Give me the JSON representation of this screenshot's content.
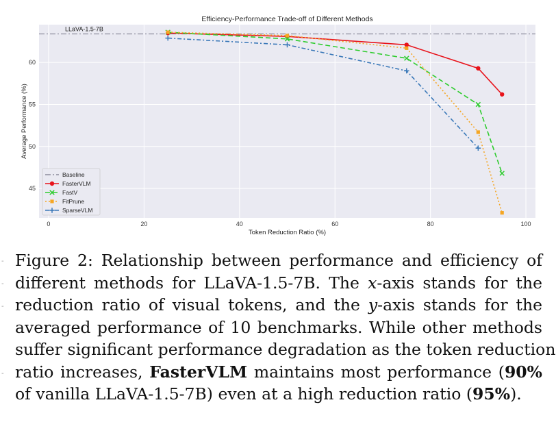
{
  "chart_data": {
    "type": "line",
    "title": "Efficiency-Performance Trade-off of Different Methods",
    "xlabel": "Token Reduction Ratio (%)",
    "ylabel": "Average Performance (%)",
    "xlim": [
      -2,
      102
    ],
    "ylim": [
      41.5,
      64.5
    ],
    "xticks": [
      0,
      20,
      40,
      60,
      80,
      100
    ],
    "yticks": [
      45,
      50,
      55,
      60
    ],
    "grid": true,
    "legend_position": "bottom-left",
    "baseline": {
      "name": "Baseline",
      "label": "LLaVA-1.5-7B",
      "value": 63.4,
      "color": "#8c8c9c"
    },
    "series": [
      {
        "name": "FasterVLM",
        "color": "#e8131b",
        "dash": "",
        "marker": "circle",
        "x": [
          25,
          50,
          75,
          90,
          95
        ],
        "values": [
          63.5,
          63.1,
          62.1,
          59.3,
          56.2
        ]
      },
      {
        "name": "FastV",
        "color": "#2ecc2e",
        "dash": "7,4",
        "marker": "x",
        "x": [
          25,
          50,
          75,
          90,
          95
        ],
        "values": [
          63.6,
          62.8,
          60.5,
          55.0,
          46.8
        ]
      },
      {
        "name": "FitPrune",
        "color": "#f5a623",
        "dash": "2,3",
        "marker": "square",
        "x": [
          25,
          50,
          75,
          90,
          95
        ],
        "values": [
          63.6,
          63.2,
          61.7,
          51.7,
          42.1
        ]
      },
      {
        "name": "SparseVLM",
        "color": "#3a78b8",
        "dash": "6,3,2,3",
        "marker": "plus",
        "x": [
          25,
          50,
          75,
          90
        ],
        "values": [
          62.9,
          62.1,
          59.0,
          49.8
        ]
      }
    ]
  },
  "caption": {
    "lines": [
      "Figure 2: Relationship between performance and efficiency of",
      "different methods for LLaVA-1.5-7B. The ",
      "x",
      "-axis stands for the",
      "reduction ratio of visual tokens, and the ",
      "y",
      "-axis stands for the",
      "averaged performance of 10 benchmarks. While other methods",
      "suffer significant performance degradation as the token reduction",
      "ratio increases, ",
      "FasterVLM",
      " maintains most performance (",
      "90%",
      "of vanilla LLaVA-1.5-7B) even at a high reduction ratio (",
      "95%",
      ")."
    ]
  }
}
